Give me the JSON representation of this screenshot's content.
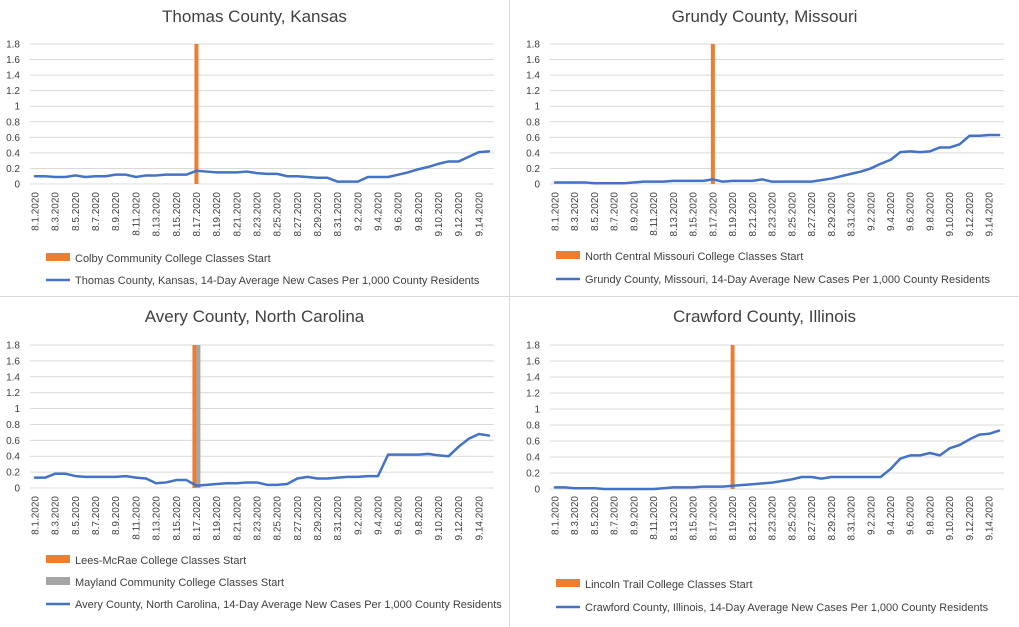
{
  "chart_data": [
    {
      "type": "line",
      "title": "Thomas County, Kansas",
      "ylim": [
        0,
        1.8
      ],
      "y_ticks": [
        "1.8",
        "1.6",
        "1.4",
        "1.2",
        "1",
        "0.8",
        "0.6",
        "0.4",
        "0.2",
        "0"
      ],
      "x_dates": [
        "8.1.2020",
        "8.2.2020",
        "8.3.2020",
        "8.4.2020",
        "8.5.2020",
        "8.6.2020",
        "8.7.2020",
        "8.8.2020",
        "8.9.2020",
        "8.10.2020",
        "8.11.2020",
        "8.12.2020",
        "8.13.2020",
        "8.14.2020",
        "8.15.2020",
        "8.16.2020",
        "8.17.2020",
        "8.18.2020",
        "8.19.2020",
        "8.20.2020",
        "8.21.2020",
        "8.22.2020",
        "8.23.2020",
        "8.24.2020",
        "8.25.2020",
        "8.26.2020",
        "8.27.2020",
        "8.28.2020",
        "8.29.2020",
        "8.30.2020",
        "8.31.2020",
        "9.1.2020",
        "9.2.2020",
        "9.3.2020",
        "9.4.2020",
        "9.5.2020",
        "9.6.2020",
        "9.7.2020",
        "9.8.2020",
        "9.9.2020",
        "9.10.2020",
        "9.11.2020",
        "9.12.2020",
        "9.13.2020",
        "9.14.2020",
        "9.15.2020"
      ],
      "x_tick_labels": [
        "8.1.2020",
        "8.3.2020",
        "8.5.2020",
        "8.7.2020",
        "8.9.2020",
        "8.11.2020",
        "8.13.2020",
        "8.15.2020",
        "8.17.2020",
        "8.19.2020",
        "8.21.2020",
        "8.23.2020",
        "8.25.2020",
        "8.27.2020",
        "8.29.2020",
        "8.31.2020",
        "9.2.2020",
        "9.4.2020",
        "9.6.2020",
        "9.8.2020",
        "9.10.2020",
        "9.12.2020",
        "9.14.2020"
      ],
      "bars": [
        {
          "name": "Colby Community College Classes Start",
          "date": "8.17.2020",
          "value": 1.8,
          "color": "#ED7D31"
        }
      ],
      "series": [
        {
          "name": "Thomas County, Kansas, 14-Day Average New Cases Per 1,000 County Residents",
          "color": "#4472C4",
          "values": [
            0.1,
            0.1,
            0.09,
            0.09,
            0.11,
            0.09,
            0.1,
            0.1,
            0.12,
            0.12,
            0.09,
            0.11,
            0.11,
            0.12,
            0.12,
            0.12,
            0.17,
            0.16,
            0.15,
            0.15,
            0.15,
            0.16,
            0.14,
            0.13,
            0.13,
            0.1,
            0.1,
            0.09,
            0.08,
            0.08,
            0.03,
            0.03,
            0.03,
            0.09,
            0.09,
            0.09,
            0.12,
            0.15,
            0.19,
            0.22,
            0.26,
            0.29,
            0.29,
            0.35,
            0.41,
            0.42
          ]
        }
      ]
    },
    {
      "type": "line",
      "title": "Grundy County, Missouri",
      "ylim": [
        0,
        1.8
      ],
      "y_ticks": [
        "1.8",
        "1.6",
        "1.4",
        "1.2",
        "1",
        "0.8",
        "0.6",
        "0.4",
        "0.2",
        "0"
      ],
      "x_dates": [
        "8.1.2020",
        "8.2.2020",
        "8.3.2020",
        "8.4.2020",
        "8.5.2020",
        "8.6.2020",
        "8.7.2020",
        "8.8.2020",
        "8.9.2020",
        "8.10.2020",
        "8.11.2020",
        "8.12.2020",
        "8.13.2020",
        "8.14.2020",
        "8.15.2020",
        "8.16.2020",
        "8.17.2020",
        "8.18.2020",
        "8.19.2020",
        "8.20.2020",
        "8.21.2020",
        "8.22.2020",
        "8.23.2020",
        "8.24.2020",
        "8.25.2020",
        "8.26.2020",
        "8.27.2020",
        "8.28.2020",
        "8.29.2020",
        "8.30.2020",
        "8.31.2020",
        "9.1.2020",
        "9.2.2020",
        "9.3.2020",
        "9.4.2020",
        "9.5.2020",
        "9.6.2020",
        "9.7.2020",
        "9.8.2020",
        "9.9.2020",
        "9.10.2020",
        "9.11.2020",
        "9.12.2020",
        "9.13.2020",
        "9.14.2020",
        "9.15.2020"
      ],
      "x_tick_labels": [
        "8.1.2020",
        "8.3.2020",
        "8.5.2020",
        "8.7.2020",
        "8.9.2020",
        "8.11.2020",
        "8.13.2020",
        "8.15.2020",
        "8.17.2020",
        "8.19.2020",
        "8.21.2020",
        "8.23.2020",
        "8.25.2020",
        "8.27.2020",
        "8.29.2020",
        "8.31.2020",
        "9.2.2020",
        "9.4.2020",
        "9.6.2020",
        "9.8.2020",
        "9.10.2020",
        "9.12.2020",
        "9.14.2020"
      ],
      "bars": [
        {
          "name": "North Central Missouri College Classes Start",
          "date": "8.17.2020",
          "value": 1.8,
          "color": "#ED7D31"
        }
      ],
      "series": [
        {
          "name": "Grundy County, Missouri, 14-Day Average New Cases Per 1,000 County Residents",
          "color": "#4472C4",
          "values": [
            0.02,
            0.02,
            0.02,
            0.02,
            0.01,
            0.01,
            0.01,
            0.01,
            0.02,
            0.03,
            0.03,
            0.03,
            0.04,
            0.04,
            0.04,
            0.04,
            0.06,
            0.03,
            0.04,
            0.04,
            0.04,
            0.06,
            0.03,
            0.03,
            0.03,
            0.03,
            0.03,
            0.05,
            0.07,
            0.1,
            0.13,
            0.16,
            0.2,
            0.26,
            0.31,
            0.41,
            0.42,
            0.41,
            0.42,
            0.47,
            0.47,
            0.51,
            0.62,
            0.62,
            0.63,
            0.63
          ]
        }
      ]
    },
    {
      "type": "line",
      "title": "Avery County, North Carolina",
      "ylim": [
        0,
        1.8
      ],
      "y_ticks": [
        "1.8",
        "1.6",
        "1.4",
        "1.2",
        "1",
        "0.8",
        "0.6",
        "0.4",
        "0.2",
        "0"
      ],
      "x_dates": [
        "8.1.2020",
        "8.2.2020",
        "8.3.2020",
        "8.4.2020",
        "8.5.2020",
        "8.6.2020",
        "8.7.2020",
        "8.8.2020",
        "8.9.2020",
        "8.10.2020",
        "8.11.2020",
        "8.12.2020",
        "8.13.2020",
        "8.14.2020",
        "8.15.2020",
        "8.16.2020",
        "8.17.2020",
        "8.18.2020",
        "8.19.2020",
        "8.20.2020",
        "8.21.2020",
        "8.22.2020",
        "8.23.2020",
        "8.24.2020",
        "8.25.2020",
        "8.26.2020",
        "8.27.2020",
        "8.28.2020",
        "8.29.2020",
        "8.30.2020",
        "8.31.2020",
        "9.1.2020",
        "9.2.2020",
        "9.3.2020",
        "9.4.2020",
        "9.5.2020",
        "9.6.2020",
        "9.7.2020",
        "9.8.2020",
        "9.9.2020",
        "9.10.2020",
        "9.11.2020",
        "9.12.2020",
        "9.13.2020",
        "9.14.2020",
        "9.15.2020"
      ],
      "x_tick_labels": [
        "8.1.2020",
        "8.3.2020",
        "8.5.2020",
        "8.7.2020",
        "8.9.2020",
        "8.11.2020",
        "8.13.2020",
        "8.15.2020",
        "8.17.2020",
        "8.19.2020",
        "8.21.2020",
        "8.23.2020",
        "8.25.2020",
        "8.27.2020",
        "8.29.2020",
        "8.31.2020",
        "9.2.2020",
        "9.4.2020",
        "9.6.2020",
        "9.8.2020",
        "9.10.2020",
        "9.12.2020",
        "9.14.2020"
      ],
      "bars": [
        {
          "name": "Lees-McRae College Classes Start",
          "date": "8.17.2020",
          "value": 1.8,
          "color": "#ED7D31"
        },
        {
          "name": "Mayland Community College Classes Start",
          "date": "8.17.2020",
          "value": 1.8,
          "color": "#A5A5A5"
        }
      ],
      "series": [
        {
          "name": "Avery County, North Carolina, 14-Day Average New Cases Per 1,000 County Residents",
          "color": "#4472C4",
          "values": [
            0.13,
            0.13,
            0.18,
            0.18,
            0.15,
            0.14,
            0.14,
            0.14,
            0.14,
            0.15,
            0.13,
            0.12,
            0.06,
            0.07,
            0.1,
            0.1,
            0.03,
            0.04,
            0.05,
            0.06,
            0.06,
            0.07,
            0.07,
            0.04,
            0.04,
            0.05,
            0.12,
            0.14,
            0.12,
            0.12,
            0.13,
            0.14,
            0.14,
            0.15,
            0.15,
            0.42,
            0.42,
            0.42,
            0.42,
            0.43,
            0.41,
            0.4,
            0.52,
            0.62,
            0.68,
            0.66
          ]
        }
      ]
    },
    {
      "type": "line",
      "title": "Crawford County, Illinois",
      "ylim": [
        0,
        1.8
      ],
      "y_ticks": [
        "1.8",
        "1.6",
        "1.4",
        "1.2",
        "1",
        "0.8",
        "0.6",
        "0.4",
        "0.2",
        "0"
      ],
      "x_dates": [
        "8.1.2020",
        "8.2.2020",
        "8.3.2020",
        "8.4.2020",
        "8.5.2020",
        "8.6.2020",
        "8.7.2020",
        "8.8.2020",
        "8.9.2020",
        "8.10.2020",
        "8.11.2020",
        "8.12.2020",
        "8.13.2020",
        "8.14.2020",
        "8.15.2020",
        "8.16.2020",
        "8.17.2020",
        "8.18.2020",
        "8.19.2020",
        "8.20.2020",
        "8.21.2020",
        "8.22.2020",
        "8.23.2020",
        "8.24.2020",
        "8.25.2020",
        "8.26.2020",
        "8.27.2020",
        "8.28.2020",
        "8.29.2020",
        "8.30.2020",
        "8.31.2020",
        "9.1.2020",
        "9.2.2020",
        "9.3.2020",
        "9.4.2020",
        "9.5.2020",
        "9.6.2020",
        "9.7.2020",
        "9.8.2020",
        "9.9.2020",
        "9.10.2020",
        "9.11.2020",
        "9.12.2020",
        "9.13.2020",
        "9.14.2020",
        "9.15.2020"
      ],
      "x_tick_labels": [
        "8.1.2020",
        "8.3.2020",
        "8.5.2020",
        "8.7.2020",
        "8.9.2020",
        "8.11.2020",
        "8.13.2020",
        "8.15.2020",
        "8.17.2020",
        "8.19.2020",
        "8.21.2020",
        "8.23.2020",
        "8.25.2020",
        "8.27.2020",
        "8.29.2020",
        "8.31.2020",
        "9.2.2020",
        "9.4.2020",
        "9.6.2020",
        "9.8.2020",
        "9.10.2020",
        "9.12.2020",
        "9.14.2020"
      ],
      "bars": [
        {
          "name": "Lincoln Trail College Classes Start",
          "date": "8.19.2020",
          "value": 1.8,
          "color": "#ED7D31"
        }
      ],
      "series": [
        {
          "name": "Crawford County, Illinois, 14-Day Average New Cases Per 1,000 County Residents",
          "color": "#4472C4",
          "values": [
            0.02,
            0.02,
            0.01,
            0.01,
            0.01,
            0.0,
            0.0,
            0.0,
            0.0,
            0.0,
            0.0,
            0.01,
            0.02,
            0.02,
            0.02,
            0.03,
            0.03,
            0.03,
            0.04,
            0.05,
            0.06,
            0.07,
            0.08,
            0.1,
            0.12,
            0.15,
            0.15,
            0.13,
            0.15,
            0.15,
            0.15,
            0.15,
            0.15,
            0.15,
            0.25,
            0.38,
            0.42,
            0.42,
            0.45,
            0.42,
            0.51,
            0.55,
            0.62,
            0.68,
            0.69,
            0.73
          ]
        }
      ]
    }
  ]
}
